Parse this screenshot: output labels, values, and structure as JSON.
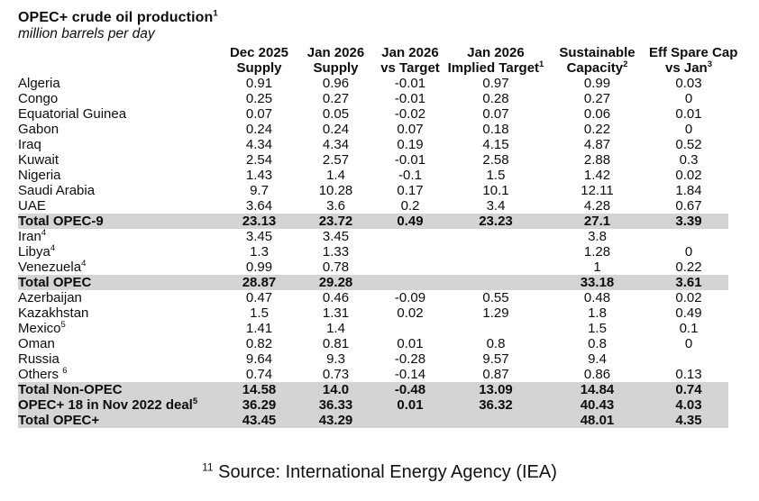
{
  "title": "OPEC+ crude oil production",
  "title_sup": "1",
  "subtitle": "million barrels per day",
  "footer": {
    "sup": "11",
    "text": " Source: International Energy Agency (IEA)"
  },
  "colors": {
    "background": "#ffffff",
    "text": "#0d0d0d",
    "total_row_bg": "#d4d4d4"
  },
  "chart_data": {
    "type": "table",
    "title": "OPEC+ crude oil production",
    "unit": "million barrels per day",
    "columns": [
      {
        "line1": "Dec 2025",
        "line2": "Supply",
        "sup": ""
      },
      {
        "line1": "Jan 2026",
        "line2": "Supply",
        "sup": ""
      },
      {
        "line1": "Jan 2026",
        "line2": "vs Target",
        "sup": ""
      },
      {
        "line1": "Jan 2026",
        "line2": "Implied Target",
        "sup": "1"
      },
      {
        "line1": "Sustainable",
        "line2": "Capacity",
        "sup": "2"
      },
      {
        "line1": "Eff Spare Cap",
        "line2": "vs Jan",
        "sup": "3"
      }
    ],
    "rows": [
      {
        "name": "Algeria",
        "sup": "",
        "total": false,
        "cells": [
          "0.91",
          "0.96",
          "-0.01",
          "0.97",
          "0.99",
          "0.03"
        ]
      },
      {
        "name": "Congo",
        "sup": "",
        "total": false,
        "cells": [
          "0.25",
          "0.27",
          "-0.01",
          "0.28",
          "0.27",
          "0"
        ]
      },
      {
        "name": "Equatorial Guinea",
        "sup": "",
        "total": false,
        "cells": [
          "0.07",
          "0.05",
          "-0.02",
          "0.07",
          "0.06",
          "0.01"
        ]
      },
      {
        "name": "Gabon",
        "sup": "",
        "total": false,
        "cells": [
          "0.24",
          "0.24",
          "0.07",
          "0.18",
          "0.22",
          "0"
        ]
      },
      {
        "name": "Iraq",
        "sup": "",
        "total": false,
        "cells": [
          "4.34",
          "4.34",
          "0.19",
          "4.15",
          "4.87",
          "0.52"
        ]
      },
      {
        "name": "Kuwait",
        "sup": "",
        "total": false,
        "cells": [
          "2.54",
          "2.57",
          "-0.01",
          "2.58",
          "2.88",
          "0.3"
        ]
      },
      {
        "name": "Nigeria",
        "sup": "",
        "total": false,
        "cells": [
          "1.43",
          "1.4",
          "-0.1",
          "1.5",
          "1.42",
          "0.02"
        ]
      },
      {
        "name": "Saudi Arabia",
        "sup": "",
        "total": false,
        "cells": [
          "9.7",
          "10.28",
          "0.17",
          "10.1",
          "12.11",
          "1.84"
        ]
      },
      {
        "name": "UAE",
        "sup": "",
        "total": false,
        "cells": [
          "3.64",
          "3.6",
          "0.2",
          "3.4",
          "4.28",
          "0.67"
        ]
      },
      {
        "name": "Total OPEC-9",
        "sup": "",
        "total": true,
        "cells": [
          "23.13",
          "23.72",
          "0.49",
          "23.23",
          "27.1",
          "3.39"
        ]
      },
      {
        "name": "Iran",
        "sup": "4",
        "total": false,
        "cells": [
          "3.45",
          "3.45",
          "",
          "",
          "3.8",
          ""
        ]
      },
      {
        "name": "Libya",
        "sup": "4",
        "total": false,
        "cells": [
          "1.3",
          "1.33",
          "",
          "",
          "1.28",
          "0"
        ]
      },
      {
        "name": "Venezuela",
        "sup": "4",
        "total": false,
        "cells": [
          "0.99",
          "0.78",
          "",
          "",
          "1",
          "0.22"
        ]
      },
      {
        "name": "Total OPEC",
        "sup": "",
        "total": true,
        "cells": [
          "28.87",
          "29.28",
          "",
          "",
          "33.18",
          "3.61"
        ]
      },
      {
        "name": "Azerbaijan",
        "sup": "",
        "total": false,
        "cells": [
          "0.47",
          "0.46",
          "-0.09",
          "0.55",
          "0.48",
          "0.02"
        ]
      },
      {
        "name": "Kazakhstan",
        "sup": "",
        "total": false,
        "cells": [
          "1.5",
          "1.31",
          "0.02",
          "1.29",
          "1.8",
          "0.49"
        ]
      },
      {
        "name": "Mexico",
        "sup": "5",
        "total": false,
        "cells": [
          "1.41",
          "1.4",
          "",
          "",
          "1.5",
          "0.1"
        ]
      },
      {
        "name": "Oman",
        "sup": "",
        "total": false,
        "cells": [
          "0.82",
          "0.81",
          "0.01",
          "0.8",
          "0.8",
          "0"
        ]
      },
      {
        "name": "Russia",
        "sup": "",
        "total": false,
        "cells": [
          "9.64",
          "9.3",
          "-0.28",
          "9.57",
          "9.4",
          ""
        ]
      },
      {
        "name": "Others ",
        "sup": "6",
        "total": false,
        "cells": [
          "0.74",
          "0.73",
          "-0.14",
          "0.87",
          "0.86",
          "0.13"
        ]
      },
      {
        "name": "Total Non-OPEC",
        "sup": "",
        "total": true,
        "cells": [
          "14.58",
          "14.0",
          "-0.48",
          "13.09",
          "14.84",
          "0.74"
        ]
      },
      {
        "name": "OPEC+ 18 in Nov 2022 deal",
        "sup": "5",
        "total": true,
        "cells": [
          "36.29",
          "36.33",
          "0.01",
          "36.32",
          "40.43",
          "4.03"
        ]
      },
      {
        "name": "Total OPEC+",
        "sup": "",
        "total": true,
        "cells": [
          "43.45",
          "43.29",
          "",
          "",
          "48.01",
          "4.35"
        ]
      }
    ]
  }
}
